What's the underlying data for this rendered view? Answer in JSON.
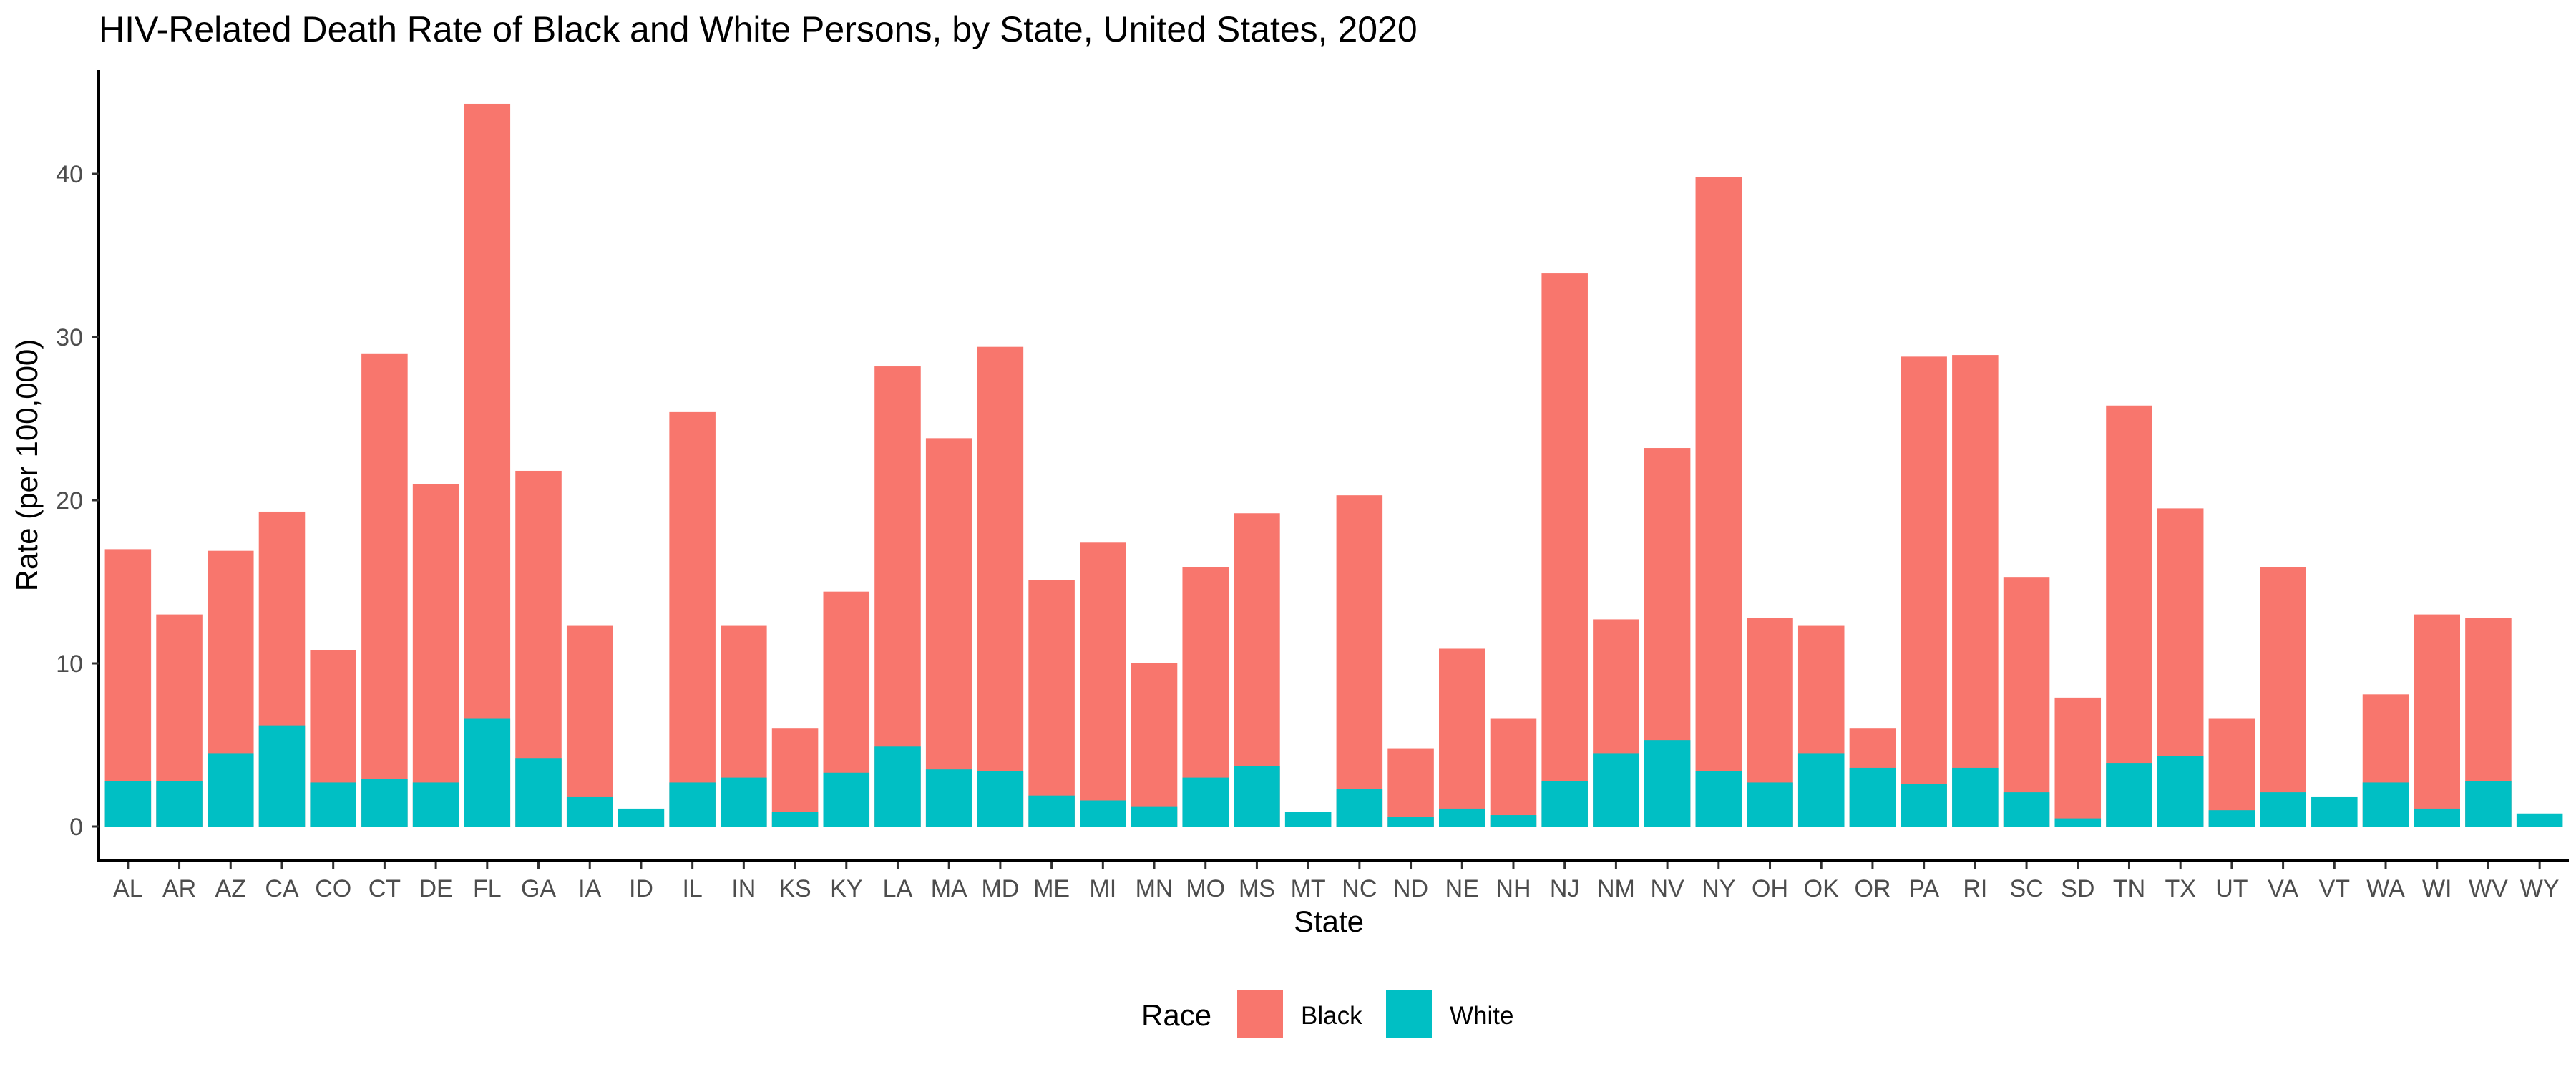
{
  "chart_data": {
    "type": "bar",
    "stacking": "overlay",
    "title": "HIV-Related Death Rate of Black and White Persons, by State, United States, 2020",
    "xlabel": "State",
    "ylabel": "Rate (per 100,000)",
    "ylim": [
      0,
      45
    ],
    "yticks": [
      0,
      10,
      20,
      30,
      40
    ],
    "grid": false,
    "legend": {
      "title": "Race",
      "placement": "bottom",
      "entries": [
        "Black",
        "White"
      ]
    },
    "categories": [
      "AL",
      "AR",
      "AZ",
      "CA",
      "CO",
      "CT",
      "DE",
      "FL",
      "GA",
      "IA",
      "ID",
      "IL",
      "IN",
      "KS",
      "KY",
      "LA",
      "MA",
      "MD",
      "ME",
      "MI",
      "MN",
      "MO",
      "MS",
      "MT",
      "NC",
      "ND",
      "NE",
      "NH",
      "NJ",
      "NM",
      "NV",
      "NY",
      "OH",
      "OK",
      "OR",
      "PA",
      "RI",
      "SC",
      "SD",
      "TN",
      "TX",
      "UT",
      "VA",
      "VT",
      "WA",
      "WI",
      "WV",
      "WY"
    ],
    "series": [
      {
        "name": "Black",
        "color": "#F8766D",
        "values": [
          17.0,
          13.0,
          16.9,
          19.3,
          10.8,
          29.0,
          21.0,
          44.3,
          21.8,
          12.3,
          null,
          25.4,
          12.3,
          6.0,
          14.4,
          28.2,
          23.8,
          29.4,
          15.1,
          17.4,
          10.0,
          15.9,
          19.2,
          null,
          20.3,
          4.8,
          10.9,
          6.6,
          33.9,
          12.7,
          23.2,
          39.8,
          12.8,
          12.3,
          6.0,
          28.8,
          28.9,
          15.3,
          7.9,
          25.8,
          19.5,
          6.6,
          15.9,
          null,
          8.1,
          13.0,
          12.8,
          null
        ]
      },
      {
        "name": "White",
        "color": "#00BFC4",
        "values": [
          2.8,
          2.8,
          4.5,
          6.2,
          2.7,
          2.9,
          2.7,
          6.6,
          4.2,
          1.8,
          1.1,
          2.7,
          3.0,
          0.9,
          3.3,
          4.9,
          3.5,
          3.4,
          1.9,
          1.6,
          1.2,
          3.0,
          3.7,
          0.9,
          2.3,
          0.6,
          1.1,
          0.7,
          2.8,
          4.5,
          5.3,
          3.4,
          2.7,
          4.5,
          3.6,
          2.6,
          3.6,
          2.1,
          0.5,
          3.9,
          4.3,
          1.0,
          2.1,
          1.8,
          2.7,
          1.1,
          2.8,
          0.8
        ]
      }
    ]
  }
}
